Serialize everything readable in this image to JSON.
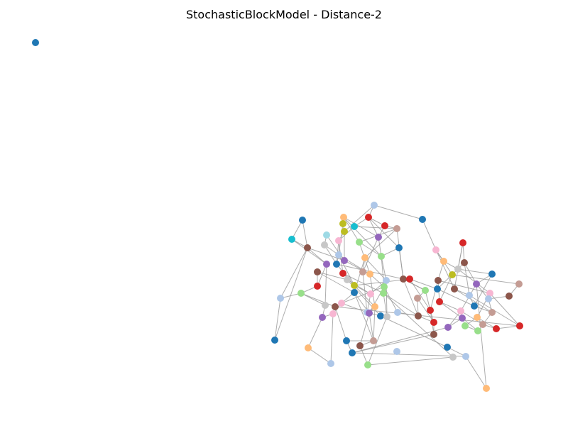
{
  "title": "StochasticBlockModel - Distance-2",
  "palette": {
    "blue": "#1f77b4",
    "light_blue": "#aec7e8",
    "orange": "#ffbb78",
    "red": "#d62728",
    "purple": "#9467bd",
    "brown": "#8c564b",
    "pink": "#f7b6d2",
    "gray": "#c7c7c7",
    "olive": "#bcbd22",
    "cyan": "#17becf",
    "light_cyan": "#9edae5",
    "green": "#98df8a",
    "rose": "#c49c94",
    "edge": "#999999"
  }
}
